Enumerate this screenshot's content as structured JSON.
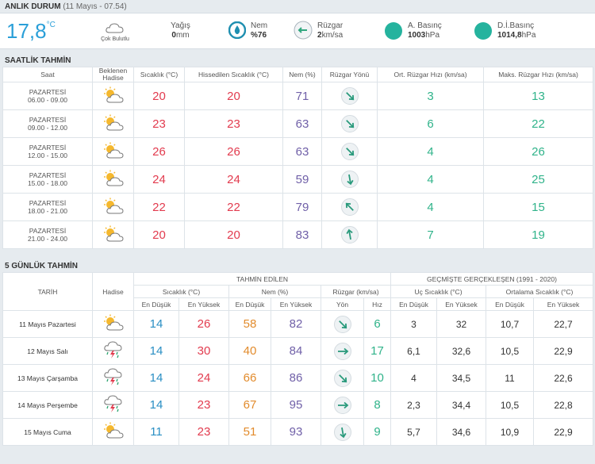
{
  "current": {
    "title": "ANLIK DURUM",
    "timestamp": "(11 Mayıs - 07.54)",
    "temp": "17,8",
    "temp_unit": "°C",
    "condition": "Çok Bulutlu",
    "rain_label": "Yağış",
    "rain_value": "0",
    "rain_unit": "mm",
    "humidity_label": "Nem",
    "humidity_value": "%76",
    "wind_label": "Rüzgar",
    "wind_value": "2",
    "wind_unit": "km/sa",
    "pressure_label": "A. Basınç",
    "pressure_value": "1003",
    "pressure_unit": "hPa",
    "sea_pressure_label": "D.İ.Basınç",
    "sea_pressure_value": "1014,8",
    "sea_pressure_unit": "hPa"
  },
  "hourly": {
    "title": "SAATLİK TAHMİN",
    "headers": {
      "saat": "Saat",
      "hadise_1": "Beklenen",
      "hadise_2": "Hadise",
      "temp": "Sıcaklık (°C)",
      "feels": "Hissedilen Sıcaklık (°C)",
      "hum": "Nem (%)",
      "dir": "Rüzgar Yönü",
      "avgwind": "Ort. Rüzgar Hızı (km/sa)",
      "maxwind": "Maks. Rüzgar Hızı (km/sa)"
    },
    "rows": [
      {
        "day": "PAZARTESİ",
        "time": "06.00 - 09.00",
        "icon": "partly-cloudy-icon",
        "temp": "20",
        "feels": "20",
        "hum": "71",
        "dir": "wind-southeast-icon",
        "avg": "3",
        "max": "13"
      },
      {
        "day": "PAZARTESİ",
        "time": "09.00 - 12.00",
        "icon": "partly-cloudy-icon",
        "temp": "23",
        "feels": "23",
        "hum": "63",
        "dir": "wind-southeast-icon",
        "avg": "6",
        "max": "22"
      },
      {
        "day": "PAZARTESİ",
        "time": "12.00 - 15.00",
        "icon": "partly-cloudy-icon",
        "temp": "26",
        "feels": "26",
        "hum": "63",
        "dir": "wind-southeast-icon",
        "avg": "4",
        "max": "26"
      },
      {
        "day": "PAZARTESİ",
        "time": "15.00 - 18.00",
        "icon": "partly-cloudy-icon",
        "temp": "24",
        "feels": "24",
        "hum": "59",
        "dir": "wind-south-icon",
        "avg": "4",
        "max": "25"
      },
      {
        "day": "PAZARTESİ",
        "time": "18.00 - 21.00",
        "icon": "partly-cloudy-icon",
        "temp": "22",
        "feels": "22",
        "hum": "79",
        "dir": "wind-northwest-icon",
        "avg": "4",
        "max": "15"
      },
      {
        "day": "PAZARTESİ",
        "time": "21.00 - 24.00",
        "icon": "partly-cloudy-icon",
        "temp": "20",
        "feels": "20",
        "hum": "83",
        "dir": "wind-north-icon",
        "avg": "7",
        "max": "19"
      }
    ]
  },
  "daily": {
    "title": "5 GÜNLÜK TAHMİN",
    "h_forecast": "TAHMİN EDİLEN",
    "h_past": "GEÇMİŞTE GERÇEKLEŞEN (1991 - 2020)",
    "h_date": "TARİH",
    "h_hadise": "Hadise",
    "h_temp": "Sıcaklık (°C)",
    "h_hum": "Nem (%)",
    "h_wind": "Rüzgar (km/sa)",
    "h_extreme": "Uç Sıcaklık (°C)",
    "h_avg": "Ortalama Sıcaklık (°C)",
    "low": "En Düşük",
    "high": "En Yüksek",
    "dir": "Yön",
    "speed": "Hız",
    "rows": [
      {
        "date": "11 Mayıs Pazartesi",
        "icon": "partly-cloudy-icon",
        "tmin": "14",
        "tmax": "26",
        "hmin": "58",
        "hmax": "82",
        "dir": "wind-southeast-icon",
        "speed": "6",
        "emin": "3",
        "emax": "32",
        "amin": "10,7",
        "amax": "22,7"
      },
      {
        "date": "12 Mayıs Salı",
        "icon": "thunderstorm-icon",
        "tmin": "14",
        "tmax": "30",
        "hmin": "40",
        "hmax": "84",
        "dir": "wind-east-icon",
        "speed": "17",
        "emin": "6,1",
        "emax": "32,6",
        "amin": "10,5",
        "amax": "22,9"
      },
      {
        "date": "13 Mayıs Çarşamba",
        "icon": "thunderstorm-icon",
        "tmin": "14",
        "tmax": "24",
        "hmin": "66",
        "hmax": "86",
        "dir": "wind-southeast-icon",
        "speed": "10",
        "emin": "4",
        "emax": "34,5",
        "amin": "11",
        "amax": "22,6"
      },
      {
        "date": "14 Mayıs Perşembe",
        "icon": "thunderstorm-icon",
        "tmin": "14",
        "tmax": "23",
        "hmin": "67",
        "hmax": "95",
        "dir": "wind-east-icon",
        "speed": "8",
        "emin": "2,3",
        "emax": "34,4",
        "amin": "10,5",
        "amax": "22,8"
      },
      {
        "date": "15 Mayıs Cuma",
        "icon": "partly-cloudy-icon",
        "tmin": "11",
        "tmax": "23",
        "hmin": "51",
        "hmax": "93",
        "dir": "wind-south-icon",
        "speed": "9",
        "emin": "5,7",
        "emax": "34,6",
        "amin": "10,9",
        "amax": "22,9"
      }
    ]
  },
  "colors": {
    "temp": "#e23b4e",
    "humidity": "#7060a8",
    "wind": "#30b38a",
    "low": "#2a8fc4",
    "hum_low": "#e28b2c",
    "accent": "#2a9fd8"
  }
}
